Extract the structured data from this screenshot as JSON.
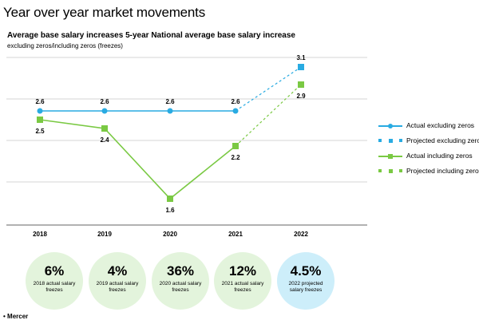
{
  "header": {
    "title": "Year over year market movements",
    "subtitle": "Average base salary increases 5-year National average base salary increase",
    "note": "excluding zeros/including zeros (freezes)"
  },
  "chart_data": {
    "type": "line",
    "categories": [
      "2018",
      "2019",
      "2020",
      "2021",
      "2022"
    ],
    "ylim": [
      1.3,
      3.3
    ],
    "grid": true,
    "legend_position": "right",
    "series": [
      {
        "name": "Actual excluding zeros",
        "values": [
          2.6,
          2.6,
          2.6,
          2.6,
          null
        ],
        "color": "#29abe2",
        "marker": "circle",
        "style": "solid"
      },
      {
        "name": "Projected excluding zeros",
        "values": [
          null,
          null,
          null,
          2.6,
          3.1
        ],
        "color": "#29abe2",
        "marker": "square",
        "style": "dashed"
      },
      {
        "name": "Actual including zeros",
        "values": [
          2.5,
          2.4,
          1.6,
          2.2,
          null
        ],
        "color": "#7ac943",
        "marker": "square",
        "style": "solid"
      },
      {
        "name": "Projected including zeros",
        "values": [
          null,
          null,
          null,
          2.2,
          2.9
        ],
        "color": "#7ac943",
        "marker": "square",
        "style": "dashed"
      }
    ],
    "labels_excluding": [
      "2.6",
      "2.6",
      "2.6",
      "2.6",
      "3.1"
    ],
    "labels_including": [
      "2.5",
      "2.4",
      "1.6",
      "2.2",
      "2.9"
    ]
  },
  "freezes": [
    {
      "pct": "6%",
      "caption": "2018 actual salary freezes",
      "projected": false
    },
    {
      "pct": "4%",
      "caption": "2019 actual salary freezes",
      "projected": false
    },
    {
      "pct": "36%",
      "caption": "2020 actual salary freezes",
      "projected": false
    },
    {
      "pct": "12%",
      "caption": "2021 actual salary freezes",
      "projected": false
    },
    {
      "pct": "4.5%",
      "caption": "2022 projected salary freezes",
      "projected": true
    }
  ],
  "footer": {
    "logo_text": "• Mercer"
  }
}
